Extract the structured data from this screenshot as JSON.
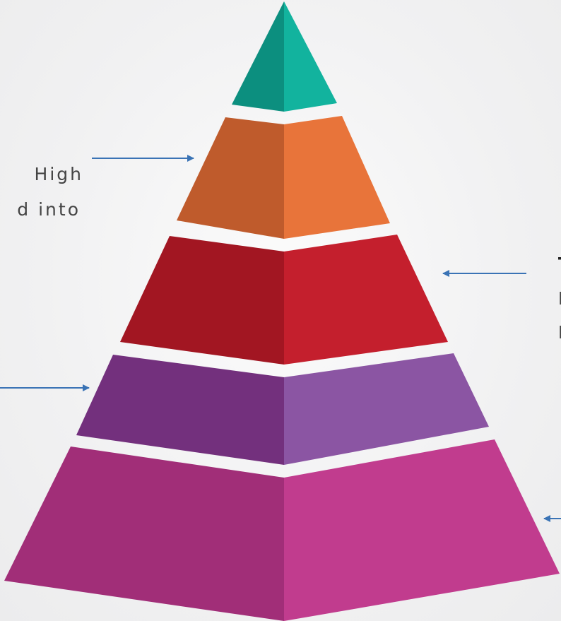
{
  "colors": {
    "tier1_left": "#0c8f7f",
    "tier1_right": "#12b39e",
    "tier2_left": "#bf5b2c",
    "tier2_right": "#e8743a",
    "tier3_left": "#a21622",
    "tier3_right": "#c41f2d",
    "tier4_left": "#73307d",
    "tier4_right": "#8b55a3",
    "tier5_left": "#a12e78",
    "tier5_right": "#c13c8e",
    "arrow": "#3a73b5"
  },
  "labels": {
    "left_tier2_line1": "High",
    "left_tier2_line2": "d into",
    "right_tier3_heading": "T",
    "right_tier3_line1": "L",
    "right_tier3_line2": "P"
  }
}
